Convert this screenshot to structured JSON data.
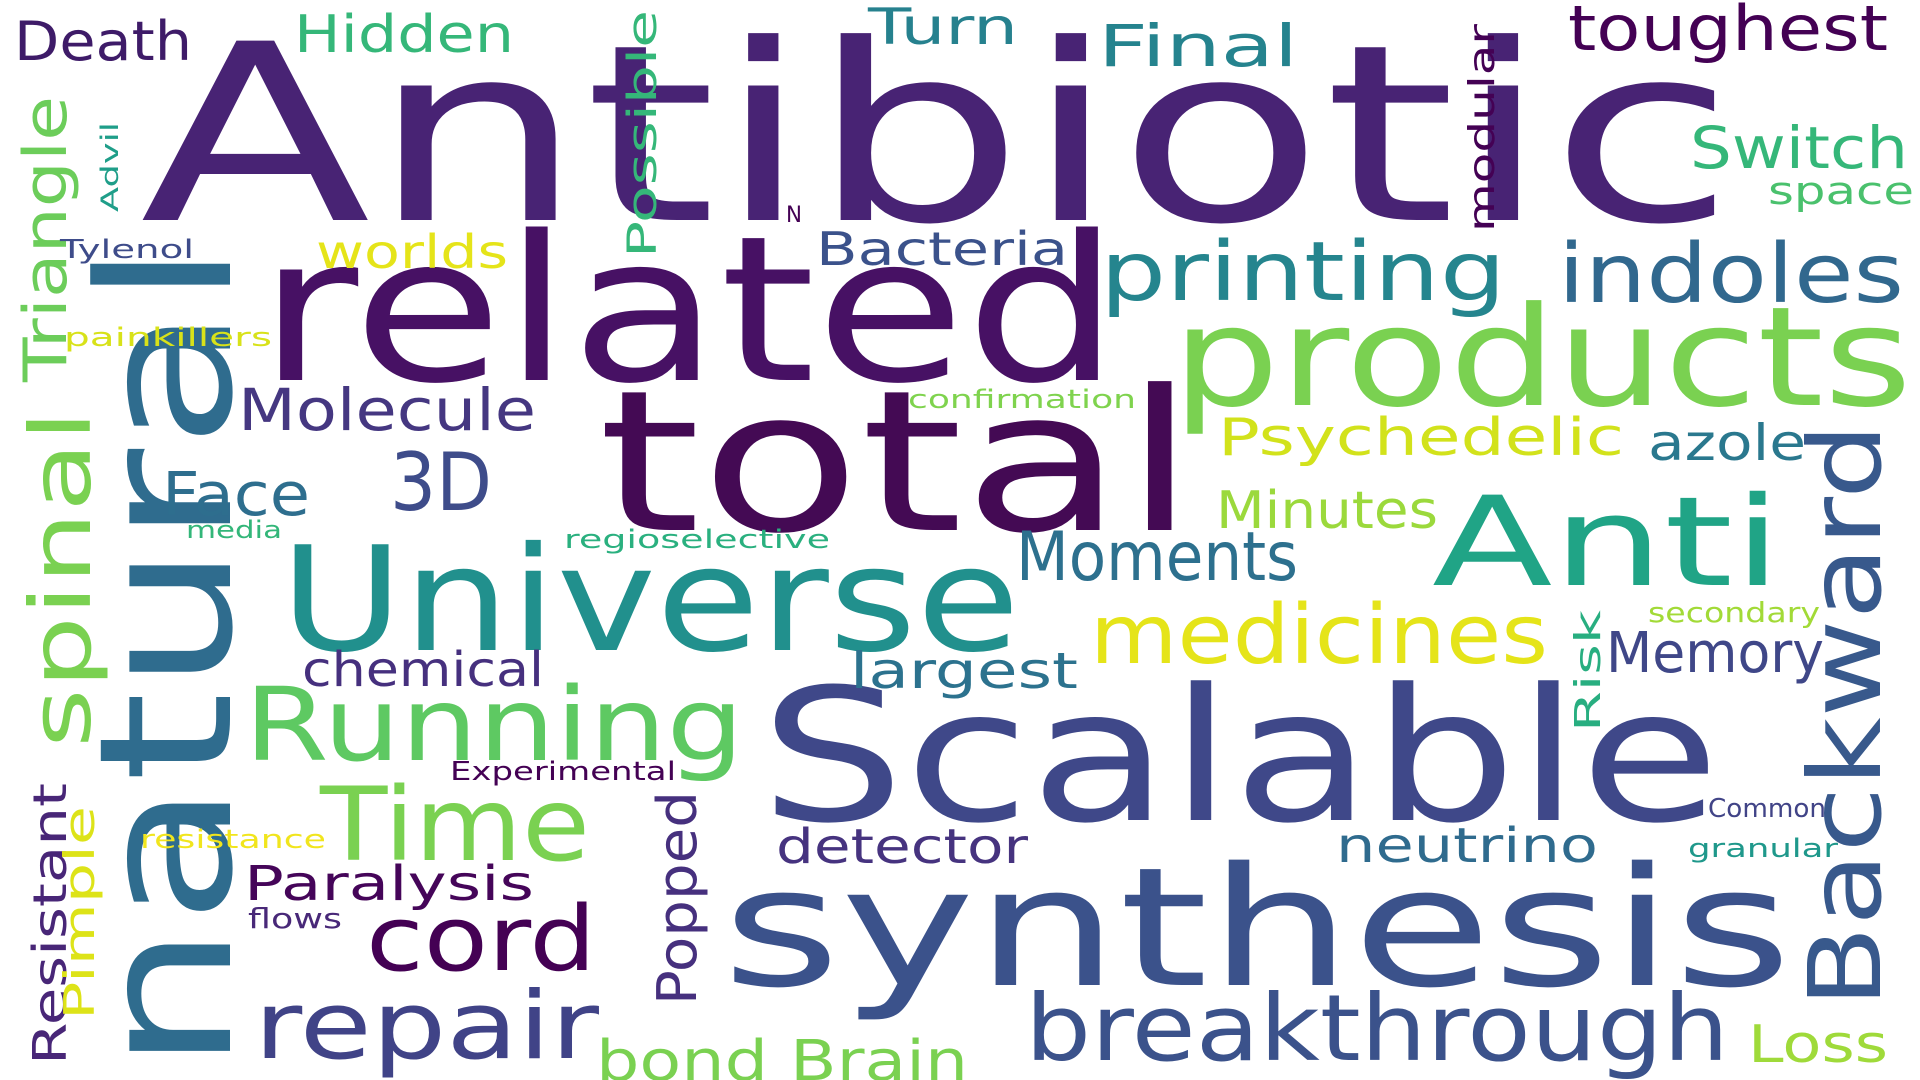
{
  "words": [
    {
      "text": "Antibiotic",
      "color": "#482374"
    },
    {
      "text": "related",
      "color": "#471164"
    },
    {
      "text": "total",
      "color": "#440a54"
    },
    {
      "text": "natural",
      "color": "#2f6c8e"
    },
    {
      "text": "Scalable",
      "color": "#3f4889"
    },
    {
      "text": "synthesis",
      "color": "#3b528b"
    },
    {
      "text": "Universe",
      "color": "#21908d"
    },
    {
      "text": "products",
      "color": "#7ad151"
    },
    {
      "text": "Anti",
      "color": "#20a486"
    },
    {
      "text": "Backward",
      "color": "#38598c"
    },
    {
      "text": "breakthrough",
      "color": "#3b528b"
    },
    {
      "text": "Running",
      "color": "#5ec962"
    },
    {
      "text": "medicines",
      "color": "#e5e419"
    },
    {
      "text": "Time",
      "color": "#7ad151"
    },
    {
      "text": "repair",
      "color": "#404387"
    },
    {
      "text": "spinal",
      "color": "#7ad151"
    },
    {
      "text": "printing",
      "color": "#25858e"
    },
    {
      "text": "indoles",
      "color": "#31688e"
    },
    {
      "text": "Moments",
      "color": "#2d708e"
    },
    {
      "text": "cord",
      "color": "#440154"
    },
    {
      "text": "3D",
      "color": "#3e4c8a"
    },
    {
      "text": "Triangle",
      "color": "#6ccd5a"
    },
    {
      "text": "Molecule",
      "color": "#453781"
    },
    {
      "text": "Psychedelic",
      "color": "#d2e21b"
    },
    {
      "text": "Face",
      "color": "#2e6e8e"
    },
    {
      "text": "Memory",
      "color": "#3f4788"
    },
    {
      "text": "Minutes",
      "color": "#9bd93c"
    },
    {
      "text": "largest",
      "color": "#2c728e"
    },
    {
      "text": "chemical",
      "color": "#46307e"
    },
    {
      "text": "azole",
      "color": "#2a788e"
    },
    {
      "text": "Switch",
      "color": "#35b779"
    },
    {
      "text": "Resistant",
      "color": "#482677"
    },
    {
      "text": "Paralysis",
      "color": "#450559"
    },
    {
      "text": "bond",
      "color": "#7ad151"
    },
    {
      "text": "Brain",
      "color": "#7ad151"
    },
    {
      "text": "neutrino",
      "color": "#2f6b8e"
    },
    {
      "text": "detector",
      "color": "#46337f"
    },
    {
      "text": "Popped",
      "color": "#46307e"
    },
    {
      "text": "Final",
      "color": "#25838e"
    },
    {
      "text": "toughest",
      "color": "#440154"
    },
    {
      "text": "Death",
      "color": "#3e1b68"
    },
    {
      "text": "Hidden",
      "color": "#35b779"
    },
    {
      "text": "Turn",
      "color": "#26818e"
    },
    {
      "text": "Bacteria",
      "color": "#3b528b"
    },
    {
      "text": "worlds",
      "color": "#e5e419"
    },
    {
      "text": "Possible",
      "color": "#35b779"
    },
    {
      "text": "modular",
      "color": "#440154"
    },
    {
      "text": "Risk",
      "color": "#28ae80"
    },
    {
      "text": "Loss",
      "color": "#9fda3a"
    },
    {
      "text": "Pimple",
      "color": "#dde318"
    },
    {
      "text": "space",
      "color": "#4ac16d"
    },
    {
      "text": "Experimental",
      "color": "#440154"
    },
    {
      "text": "resistance",
      "color": "#f1e51d"
    },
    {
      "text": "painkillers",
      "color": "#d8e219"
    },
    {
      "text": "confirmation",
      "color": "#7fd34e"
    },
    {
      "text": "regioselective",
      "color": "#2ab07f"
    },
    {
      "text": "secondary",
      "color": "#a2da37"
    },
    {
      "text": "Common",
      "color": "#414487"
    },
    {
      "text": "granular",
      "color": "#1f988b"
    },
    {
      "text": "media",
      "color": "#33b679"
    },
    {
      "text": "flows",
      "color": "#482878"
    },
    {
      "text": "Tylenol",
      "color": "#3e4c8a"
    },
    {
      "text": "Advil",
      "color": "#1f9e89"
    },
    {
      "text": "N",
      "color": "#440154"
    }
  ]
}
